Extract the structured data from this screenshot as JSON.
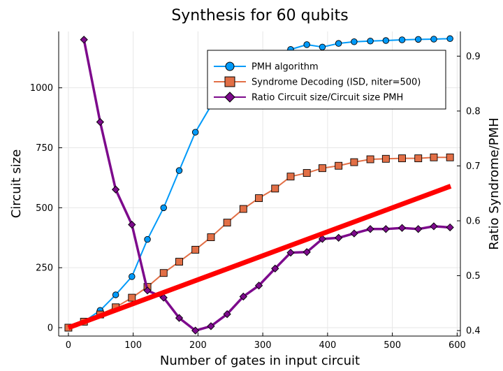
{
  "chart_data": {
    "type": "line",
    "title": "Synthesis for 60 qubits",
    "xlabel": "Number of gates in input circuit",
    "ylabel": "Circuit size",
    "ylabel_right": "Ratio Syndrome/PMH",
    "xlim": [
      -15,
      605
    ],
    "ylim": [
      -35,
      1235
    ],
    "ylim_right": [
      0.39,
      0.945
    ],
    "x_ticks": [
      "0",
      "100",
      "200",
      "300",
      "400",
      "500",
      "600"
    ],
    "y_ticks": [
      "0",
      "250",
      "500",
      "750",
      "1000"
    ],
    "y_ticks_right": [
      "0.4",
      "0.5",
      "0.6",
      "0.7",
      "0.8",
      "0.9"
    ],
    "grid": true,
    "legend_position": "top-right",
    "series": [
      {
        "name": "PMH algorithm",
        "axis": "left",
        "color": "#009af9",
        "marker": "circle",
        "x": [
          0,
          24,
          49,
          73,
          98,
          122,
          147,
          171,
          196,
          220,
          245,
          270,
          294,
          319,
          343,
          368,
          392,
          417,
          441,
          466,
          490,
          515,
          540,
          564,
          589
        ],
        "y": [
          0,
          25,
          72,
          137,
          213,
          368,
          500,
          655,
          815,
          925,
          1000,
          1060,
          1110,
          1140,
          1160,
          1180,
          1170,
          1185,
          1192,
          1195,
          1197,
          1200,
          1202,
          1203,
          1205
        ]
      },
      {
        "name": "Syndrome Decoding (ISD, niter=500)",
        "axis": "left",
        "color": "#e26f46",
        "marker": "square",
        "x": [
          0,
          24,
          49,
          73,
          98,
          122,
          147,
          171,
          196,
          220,
          245,
          270,
          294,
          319,
          343,
          368,
          392,
          417,
          441,
          466,
          490,
          515,
          540,
          564,
          589
        ],
        "y": [
          0,
          25,
          55,
          85,
          125,
          170,
          228,
          275,
          325,
          377,
          438,
          495,
          540,
          580,
          630,
          645,
          665,
          675,
          690,
          702,
          704,
          706,
          706,
          710,
          710
        ]
      },
      {
        "name": "Ratio Circuit size/Circuit size PMH",
        "axis": "right",
        "color": "#7d0a8c",
        "marker": "diamond",
        "x": [
          24,
          49,
          73,
          98,
          122,
          147,
          171,
          196,
          220,
          245,
          270,
          294,
          319,
          343,
          368,
          392,
          417,
          441,
          466,
          490,
          515,
          540,
          564,
          589
        ],
        "y": [
          0.93,
          0.78,
          0.657,
          0.593,
          0.473,
          0.46,
          0.423,
          0.4,
          0.408,
          0.43,
          0.462,
          0.482,
          0.513,
          0.542,
          0.543,
          0.567,
          0.569,
          0.577,
          0.585,
          0.585,
          0.587,
          0.585,
          0.59,
          0.588
        ]
      },
      {
        "name": "",
        "axis": "left",
        "color": "#ff0000",
        "marker": "none",
        "x": [
          0,
          590
        ],
        "y": [
          0,
          590
        ]
      }
    ]
  }
}
